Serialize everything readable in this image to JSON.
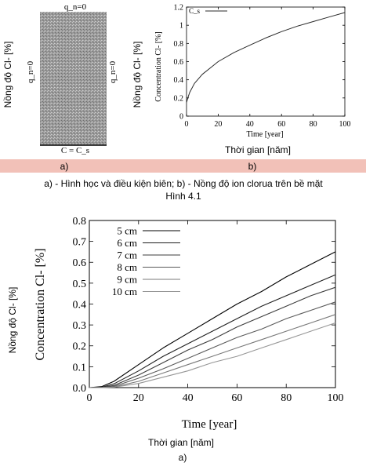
{
  "figure_a": {
    "top_label": "q_n=0",
    "left_label": "q_n=0",
    "right_label": "q_n=0",
    "bottom_label": "C = C_s",
    "ylabel_vi": "Nồng độ Cl- [%]",
    "caption": "a)"
  },
  "figure_b": {
    "ylabel_vi": "Nồng độ Cl- [%]",
    "xlabel_vi": "Thời gian [năm]",
    "caption": "b)"
  },
  "caption_line": "a) - Hình học và điều kiện biên; b) - Nồng độ ion clorua trên bề mặt",
  "figure_number": "Hình 4.1",
  "figure_c": {
    "ylabel_vi": "Nồng độ Cl- [%]",
    "xlabel_vi": "Thời gian [năm]",
    "caption": "a)"
  },
  "chart_data": [
    {
      "type": "line",
      "xlabel": "Time [year]",
      "ylabel": "Concentration Cl- [%]",
      "xlim": [
        0,
        100
      ],
      "ylim": [
        0,
        1.2
      ],
      "xticks": [
        0,
        20,
        40,
        60,
        80,
        100
      ],
      "yticks": [
        0,
        0.2,
        0.4,
        0.6,
        0.8,
        1,
        1.2
      ],
      "ytick_labels": [
        "0",
        "0.2",
        "0.4",
        "0.6",
        "0.8",
        "1",
        "1.2"
      ],
      "legend": "top-left",
      "grid": false,
      "series": [
        {
          "name": "C_s",
          "x": [
            0,
            1,
            2,
            5,
            10,
            15,
            20,
            30,
            40,
            50,
            60,
            70,
            80,
            90,
            100
          ],
          "y": [
            0.15,
            0.21,
            0.26,
            0.36,
            0.46,
            0.53,
            0.6,
            0.7,
            0.78,
            0.86,
            0.93,
            0.99,
            1.04,
            1.09,
            1.14
          ]
        }
      ]
    },
    {
      "type": "line",
      "xlabel": "Time [year]",
      "ylabel": "Concentration Cl- [%]",
      "xlim": [
        0,
        100
      ],
      "ylim": [
        0,
        0.8
      ],
      "xticks": [
        0,
        20,
        40,
        60,
        80,
        100
      ],
      "yticks": [
        0,
        0.1,
        0.2,
        0.3,
        0.4,
        0.5,
        0.6,
        0.7,
        0.8
      ],
      "legend": "top-left",
      "grid": false,
      "series": [
        {
          "name": "5 cm",
          "x": [
            0,
            5,
            10,
            20,
            30,
            40,
            50,
            60,
            70,
            80,
            90,
            100
          ],
          "y": [
            0,
            0.005,
            0.03,
            0.11,
            0.19,
            0.26,
            0.33,
            0.4,
            0.46,
            0.53,
            0.59,
            0.65
          ]
        },
        {
          "name": "6 cm",
          "x": [
            0,
            5,
            10,
            20,
            30,
            40,
            50,
            60,
            70,
            80,
            90,
            100
          ],
          "y": [
            0,
            0.002,
            0.018,
            0.08,
            0.15,
            0.21,
            0.27,
            0.33,
            0.39,
            0.44,
            0.49,
            0.54
          ]
        },
        {
          "name": "7 cm",
          "x": [
            0,
            5,
            10,
            20,
            30,
            40,
            50,
            60,
            70,
            80,
            90,
            100
          ],
          "y": [
            0,
            0.001,
            0.01,
            0.06,
            0.12,
            0.18,
            0.23,
            0.29,
            0.34,
            0.39,
            0.44,
            0.48
          ]
        },
        {
          "name": "8 cm",
          "x": [
            0,
            5,
            10,
            20,
            30,
            40,
            50,
            60,
            70,
            80,
            90,
            100
          ],
          "y": [
            0,
            0,
            0.006,
            0.045,
            0.09,
            0.14,
            0.19,
            0.24,
            0.28,
            0.33,
            0.37,
            0.41
          ]
        },
        {
          "name": "9 cm",
          "x": [
            0,
            5,
            10,
            20,
            30,
            40,
            50,
            60,
            70,
            80,
            90,
            100
          ],
          "y": [
            0,
            0,
            0.003,
            0.03,
            0.07,
            0.11,
            0.15,
            0.19,
            0.23,
            0.27,
            0.31,
            0.35
          ]
        },
        {
          "name": "10 cm",
          "x": [
            0,
            5,
            10,
            20,
            30,
            40,
            50,
            60,
            70,
            80,
            90,
            100
          ],
          "y": [
            0,
            0,
            0.002,
            0.02,
            0.05,
            0.08,
            0.12,
            0.15,
            0.19,
            0.23,
            0.27,
            0.31
          ]
        }
      ]
    }
  ]
}
